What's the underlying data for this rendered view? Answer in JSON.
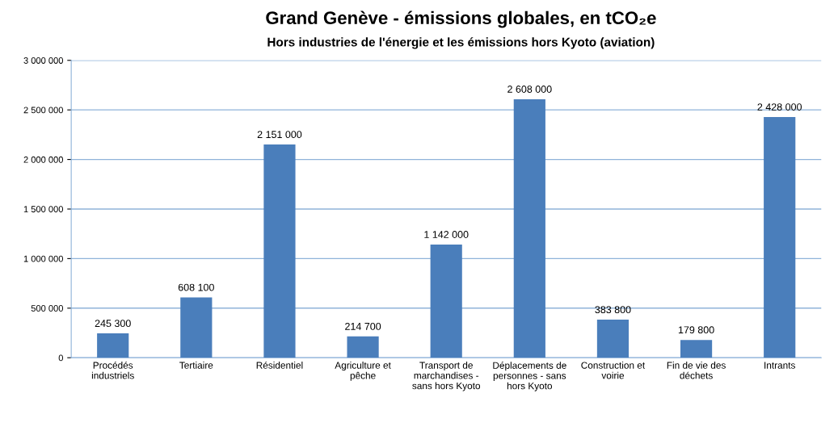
{
  "chart_data": {
    "type": "bar",
    "title": "Grand Genève - émissions globales, en tCO₂e",
    "subtitle": "Hors industries de l'énergie et les émissions hors Kyoto (aviation)",
    "categories": [
      "Procédés\nindustriels",
      "Tertiaire",
      "Résidentiel",
      "Agriculture et\npêche",
      "Transport de\nmarchandises -\nsans hors Kyoto",
      "Déplacements de\npersonnes - sans\nhors Kyoto",
      "Construction et\nvoirie",
      "Fin de vie des\ndéchets",
      "Intrants"
    ],
    "values": [
      245300,
      608100,
      2151000,
      214700,
      1142000,
      2608000,
      383800,
      179800,
      2428000
    ],
    "value_labels": [
      "245 300",
      "608 100",
      "2 151 000",
      "214 700",
      "1 142 000",
      "2 608 000",
      "383 800",
      "179 800",
      "2 428 000"
    ],
    "color": "#4a7ebb",
    "ylim": [
      0,
      3000000
    ],
    "yticks": [
      {
        "value": 0,
        "label": "0"
      },
      {
        "value": 500000,
        "label": "500 000"
      },
      {
        "value": 1000000,
        "label": "1 000 000"
      },
      {
        "value": 1500000,
        "label": "1 500 000"
      },
      {
        "value": 2000000,
        "label": "2 000 000"
      },
      {
        "value": 2500000,
        "label": "2 500 000"
      },
      {
        "value": 3000000,
        "label": "3 000 000"
      }
    ],
    "grid": "y"
  }
}
